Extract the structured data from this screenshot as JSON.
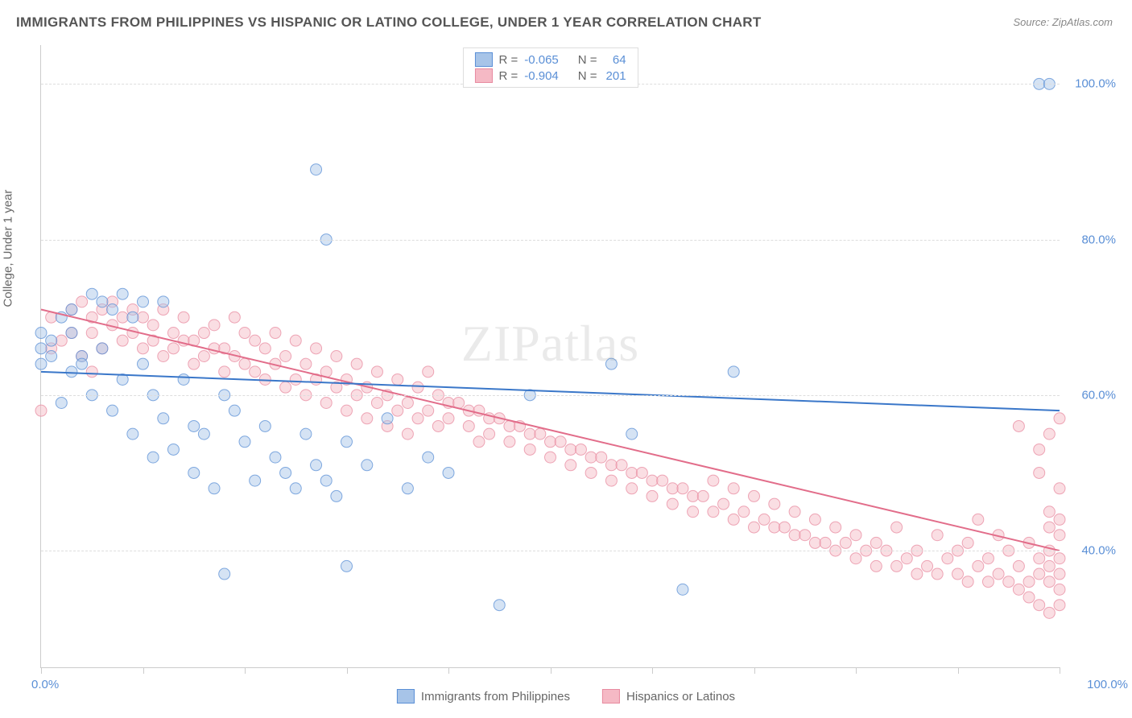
{
  "title": "IMMIGRANTS FROM PHILIPPINES VS HISPANIC OR LATINO COLLEGE, UNDER 1 YEAR CORRELATION CHART",
  "source": "Source: ZipAtlas.com",
  "ylabel": "College, Under 1 year",
  "watermark": "ZIPatlas",
  "chart": {
    "type": "scatter",
    "xlim": [
      0,
      100
    ],
    "ylim": [
      25,
      105
    ],
    "xtick_positions": [
      0,
      10,
      20,
      30,
      40,
      50,
      60,
      70,
      80,
      90,
      100
    ],
    "ytick_positions": [
      40,
      60,
      80,
      100
    ],
    "ytick_labels": [
      "40.0%",
      "60.0%",
      "80.0%",
      "100.0%"
    ],
    "xaxis_left_label": "0.0%",
    "xaxis_right_label": "100.0%",
    "background_color": "#ffffff",
    "grid_color": "#dddddd",
    "marker_radius": 7,
    "marker_opacity": 0.48,
    "marker_stroke_opacity": 0.75,
    "line_width": 2
  },
  "series": {
    "blue": {
      "label": "Immigrants from Philippines",
      "fill": "#a7c4e8",
      "stroke": "#5a8fd6",
      "line_color": "#3a77c9",
      "regression": {
        "x1": 0,
        "y1": 63,
        "x2": 100,
        "y2": 58
      },
      "R": "-0.065",
      "N": "64",
      "points": [
        [
          0,
          66
        ],
        [
          0,
          64
        ],
        [
          0,
          68
        ],
        [
          1,
          67
        ],
        [
          1,
          65
        ],
        [
          2,
          70
        ],
        [
          2,
          59
        ],
        [
          3,
          68
        ],
        [
          3,
          63
        ],
        [
          3,
          71
        ],
        [
          4,
          65
        ],
        [
          4,
          64
        ],
        [
          5,
          73
        ],
        [
          5,
          60
        ],
        [
          6,
          66
        ],
        [
          6,
          72
        ],
        [
          7,
          71
        ],
        [
          7,
          58
        ],
        [
          8,
          73
        ],
        [
          8,
          62
        ],
        [
          9,
          70
        ],
        [
          9,
          55
        ],
        [
          10,
          72
        ],
        [
          10,
          64
        ],
        [
          11,
          60
        ],
        [
          11,
          52
        ],
        [
          12,
          72
        ],
        [
          12,
          57
        ],
        [
          13,
          53
        ],
        [
          14,
          62
        ],
        [
          15,
          50
        ],
        [
          15,
          56
        ],
        [
          16,
          55
        ],
        [
          17,
          48
        ],
        [
          18,
          60
        ],
        [
          18,
          37
        ],
        [
          19,
          58
        ],
        [
          20,
          54
        ],
        [
          21,
          49
        ],
        [
          22,
          56
        ],
        [
          23,
          52
        ],
        [
          24,
          50
        ],
        [
          25,
          48
        ],
        [
          26,
          55
        ],
        [
          27,
          89
        ],
        [
          27,
          51
        ],
        [
          28,
          80
        ],
        [
          28,
          49
        ],
        [
          29,
          47
        ],
        [
          30,
          38
        ],
        [
          30,
          54
        ],
        [
          32,
          51
        ],
        [
          34,
          57
        ],
        [
          36,
          48
        ],
        [
          38,
          52
        ],
        [
          40,
          50
        ],
        [
          45,
          33
        ],
        [
          48,
          60
        ],
        [
          56,
          64
        ],
        [
          58,
          55
        ],
        [
          63,
          35
        ],
        [
          68,
          63
        ],
        [
          98,
          100
        ],
        [
          99,
          100
        ]
      ]
    },
    "pink": {
      "label": "Hispanics or Latinos",
      "fill": "#f5b9c5",
      "stroke": "#e88ba0",
      "line_color": "#e26d8a",
      "regression": {
        "x1": 0,
        "y1": 71,
        "x2": 100,
        "y2": 40
      },
      "R": "-0.904",
      "N": "201",
      "points": [
        [
          0,
          58
        ],
        [
          1,
          70
        ],
        [
          1,
          66
        ],
        [
          2,
          67
        ],
        [
          3,
          71
        ],
        [
          3,
          68
        ],
        [
          4,
          72
        ],
        [
          4,
          65
        ],
        [
          5,
          70
        ],
        [
          5,
          68
        ],
        [
          5,
          63
        ],
        [
          6,
          71
        ],
        [
          6,
          66
        ],
        [
          7,
          72
        ],
        [
          7,
          69
        ],
        [
          8,
          70
        ],
        [
          8,
          67
        ],
        [
          9,
          71
        ],
        [
          9,
          68
        ],
        [
          10,
          70
        ],
        [
          10,
          66
        ],
        [
          11,
          69
        ],
        [
          11,
          67
        ],
        [
          12,
          71
        ],
        [
          12,
          65
        ],
        [
          13,
          68
        ],
        [
          13,
          66
        ],
        [
          14,
          70
        ],
        [
          14,
          67
        ],
        [
          15,
          67
        ],
        [
          15,
          64
        ],
        [
          16,
          68
        ],
        [
          16,
          65
        ],
        [
          17,
          69
        ],
        [
          17,
          66
        ],
        [
          18,
          66
        ],
        [
          18,
          63
        ],
        [
          19,
          70
        ],
        [
          19,
          65
        ],
        [
          20,
          68
        ],
        [
          20,
          64
        ],
        [
          21,
          67
        ],
        [
          21,
          63
        ],
        [
          22,
          66
        ],
        [
          22,
          62
        ],
        [
          23,
          68
        ],
        [
          23,
          64
        ],
        [
          24,
          65
        ],
        [
          24,
          61
        ],
        [
          25,
          67
        ],
        [
          25,
          62
        ],
        [
          26,
          64
        ],
        [
          26,
          60
        ],
        [
          27,
          66
        ],
        [
          27,
          62
        ],
        [
          28,
          63
        ],
        [
          28,
          59
        ],
        [
          29,
          65
        ],
        [
          29,
          61
        ],
        [
          30,
          62
        ],
        [
          30,
          58
        ],
        [
          31,
          64
        ],
        [
          31,
          60
        ],
        [
          32,
          61
        ],
        [
          32,
          57
        ],
        [
          33,
          63
        ],
        [
          33,
          59
        ],
        [
          34,
          60
        ],
        [
          34,
          56
        ],
        [
          35,
          62
        ],
        [
          35,
          58
        ],
        [
          36,
          59
        ],
        [
          36,
          55
        ],
        [
          37,
          61
        ],
        [
          37,
          57
        ],
        [
          38,
          58
        ],
        [
          38,
          63
        ],
        [
          39,
          60
        ],
        [
          39,
          56
        ],
        [
          40,
          57
        ],
        [
          40,
          59
        ],
        [
          41,
          59
        ],
        [
          42,
          56
        ],
        [
          42,
          58
        ],
        [
          43,
          58
        ],
        [
          43,
          54
        ],
        [
          44,
          55
        ],
        [
          44,
          57
        ],
        [
          45,
          57
        ],
        [
          46,
          54
        ],
        [
          46,
          56
        ],
        [
          47,
          56
        ],
        [
          48,
          53
        ],
        [
          48,
          55
        ],
        [
          49,
          55
        ],
        [
          50,
          52
        ],
        [
          50,
          54
        ],
        [
          51,
          54
        ],
        [
          52,
          51
        ],
        [
          52,
          53
        ],
        [
          53,
          53
        ],
        [
          54,
          50
        ],
        [
          54,
          52
        ],
        [
          55,
          52
        ],
        [
          56,
          49
        ],
        [
          56,
          51
        ],
        [
          57,
          51
        ],
        [
          58,
          48
        ],
        [
          58,
          50
        ],
        [
          59,
          50
        ],
        [
          60,
          47
        ],
        [
          60,
          49
        ],
        [
          61,
          49
        ],
        [
          62,
          46
        ],
        [
          62,
          48
        ],
        [
          63,
          48
        ],
        [
          64,
          45
        ],
        [
          64,
          47
        ],
        [
          65,
          47
        ],
        [
          66,
          45
        ],
        [
          66,
          49
        ],
        [
          67,
          46
        ],
        [
          68,
          44
        ],
        [
          68,
          48
        ],
        [
          69,
          45
        ],
        [
          70,
          43
        ],
        [
          70,
          47
        ],
        [
          71,
          44
        ],
        [
          72,
          43
        ],
        [
          72,
          46
        ],
        [
          73,
          43
        ],
        [
          74,
          42
        ],
        [
          74,
          45
        ],
        [
          75,
          42
        ],
        [
          76,
          41
        ],
        [
          76,
          44
        ],
        [
          77,
          41
        ],
        [
          78,
          40
        ],
        [
          78,
          43
        ],
        [
          79,
          41
        ],
        [
          80,
          39
        ],
        [
          80,
          42
        ],
        [
          81,
          40
        ],
        [
          82,
          38
        ],
        [
          82,
          41
        ],
        [
          83,
          40
        ],
        [
          84,
          38
        ],
        [
          84,
          43
        ],
        [
          85,
          39
        ],
        [
          86,
          37
        ],
        [
          86,
          40
        ],
        [
          87,
          38
        ],
        [
          88,
          37
        ],
        [
          88,
          42
        ],
        [
          89,
          39
        ],
        [
          90,
          37
        ],
        [
          90,
          40
        ],
        [
          91,
          36
        ],
        [
          91,
          41
        ],
        [
          92,
          38
        ],
        [
          92,
          44
        ],
        [
          93,
          36
        ],
        [
          93,
          39
        ],
        [
          94,
          37
        ],
        [
          94,
          42
        ],
        [
          95,
          36
        ],
        [
          95,
          40
        ],
        [
          96,
          35
        ],
        [
          96,
          38
        ],
        [
          96,
          56
        ],
        [
          97,
          36
        ],
        [
          97,
          34
        ],
        [
          97,
          41
        ],
        [
          98,
          37
        ],
        [
          98,
          33
        ],
        [
          98,
          39
        ],
        [
          98,
          53
        ],
        [
          98,
          50
        ],
        [
          99,
          36
        ],
        [
          99,
          32
        ],
        [
          99,
          38
        ],
        [
          99,
          40
        ],
        [
          99,
          43
        ],
        [
          99,
          45
        ],
        [
          99,
          55
        ],
        [
          100,
          35
        ],
        [
          100,
          33
        ],
        [
          100,
          37
        ],
        [
          100,
          39
        ],
        [
          100,
          42
        ],
        [
          100,
          44
        ],
        [
          100,
          48
        ],
        [
          100,
          57
        ]
      ]
    }
  },
  "legend": {
    "r_label": "R =",
    "n_label": "N ="
  }
}
